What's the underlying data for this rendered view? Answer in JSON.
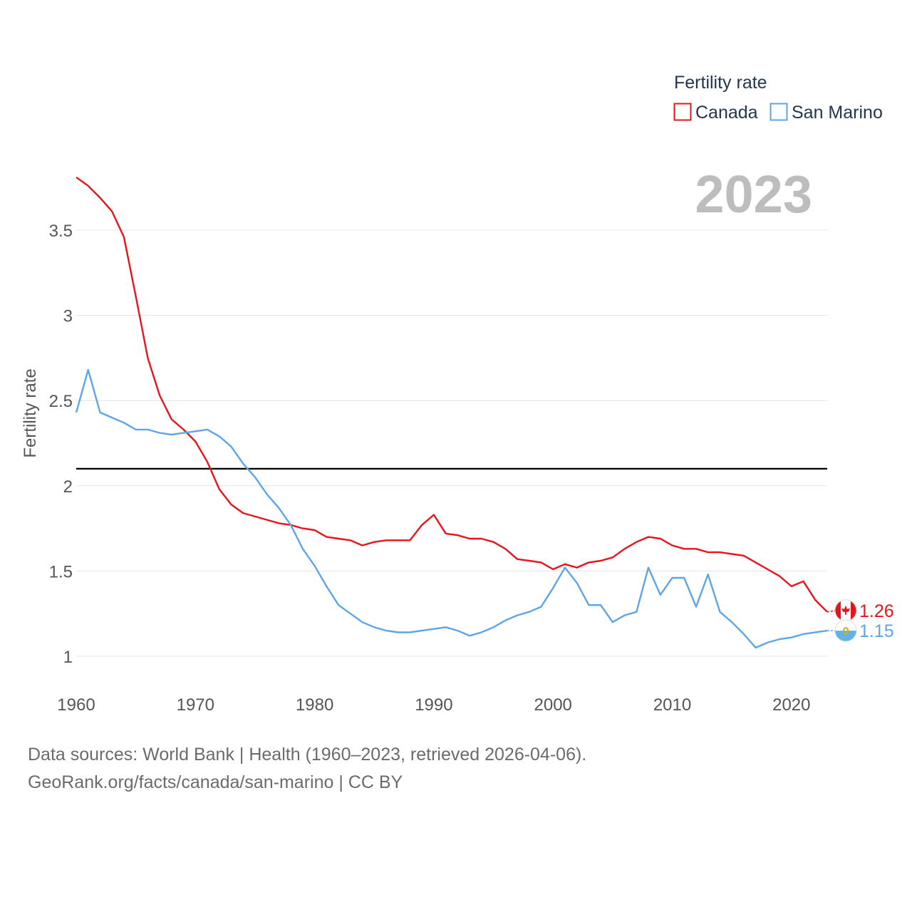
{
  "chart_data": {
    "type": "line",
    "year_label": "2023",
    "ylabel": "Fertility rate",
    "xlim": [
      1960,
      2023
    ],
    "ylim": [
      0.85,
      3.85
    ],
    "xticks": [
      1960,
      1970,
      1980,
      1990,
      2000,
      2010,
      2020
    ],
    "yticks": [
      1,
      1.5,
      2,
      2.5,
      3,
      3.5
    ],
    "reference_line": 2.1,
    "legend": {
      "title": "Fertility rate"
    },
    "x": [
      1960,
      1961,
      1962,
      1963,
      1964,
      1965,
      1966,
      1967,
      1968,
      1969,
      1970,
      1971,
      1972,
      1973,
      1974,
      1975,
      1976,
      1977,
      1978,
      1979,
      1980,
      1981,
      1982,
      1983,
      1984,
      1985,
      1986,
      1987,
      1988,
      1989,
      1990,
      1991,
      1992,
      1993,
      1994,
      1995,
      1996,
      1997,
      1998,
      1999,
      2000,
      2001,
      2002,
      2003,
      2004,
      2005,
      2006,
      2007,
      2008,
      2009,
      2010,
      2011,
      2012,
      2013,
      2014,
      2015,
      2016,
      2017,
      2018,
      2019,
      2020,
      2021,
      2022,
      2023
    ],
    "series": [
      {
        "name": "Canada",
        "color": "#e8141b",
        "end_value": "1.26",
        "flag": "canada-flag-icon",
        "values": [
          3.81,
          3.76,
          3.69,
          3.61,
          3.46,
          3.11,
          2.75,
          2.53,
          2.39,
          2.33,
          2.26,
          2.14,
          1.98,
          1.89,
          1.84,
          1.82,
          1.8,
          1.78,
          1.77,
          1.75,
          1.74,
          1.7,
          1.69,
          1.68,
          1.65,
          1.67,
          1.68,
          1.68,
          1.68,
          1.77,
          1.83,
          1.72,
          1.71,
          1.69,
          1.69,
          1.67,
          1.63,
          1.57,
          1.56,
          1.55,
          1.51,
          1.54,
          1.52,
          1.55,
          1.56,
          1.58,
          1.63,
          1.67,
          1.7,
          1.69,
          1.65,
          1.63,
          1.63,
          1.61,
          1.61,
          1.6,
          1.59,
          1.55,
          1.51,
          1.47,
          1.41,
          1.44,
          1.33,
          1.26
        ]
      },
      {
        "name": "San Marino",
        "color": "#5ea5e8",
        "end_value": "1.15",
        "flag": "san-marino-flag-icon",
        "values": [
          2.43,
          2.68,
          2.43,
          2.4,
          2.37,
          2.33,
          2.33,
          2.31,
          2.3,
          2.31,
          2.32,
          2.33,
          2.29,
          2.23,
          2.13,
          2.05,
          1.95,
          1.87,
          1.77,
          1.63,
          1.53,
          1.41,
          1.3,
          1.25,
          1.2,
          1.17,
          1.15,
          1.14,
          1.14,
          1.15,
          1.16,
          1.17,
          1.15,
          1.12,
          1.14,
          1.17,
          1.21,
          1.24,
          1.26,
          1.29,
          1.4,
          1.52,
          1.43,
          1.3,
          1.3,
          1.2,
          1.24,
          1.26,
          1.52,
          1.36,
          1.46,
          1.46,
          1.29,
          1.48,
          1.26,
          1.2,
          1.13,
          1.05,
          1.08,
          1.1,
          1.11,
          1.13,
          1.14,
          1.15
        ]
      }
    ]
  },
  "footer": {
    "sources": "Data sources: World Bank | Health (1960–2023, retrieved 2026-04-06).",
    "attribution": "GeoRank.org/facts/canada/san-marino | CC BY"
  }
}
